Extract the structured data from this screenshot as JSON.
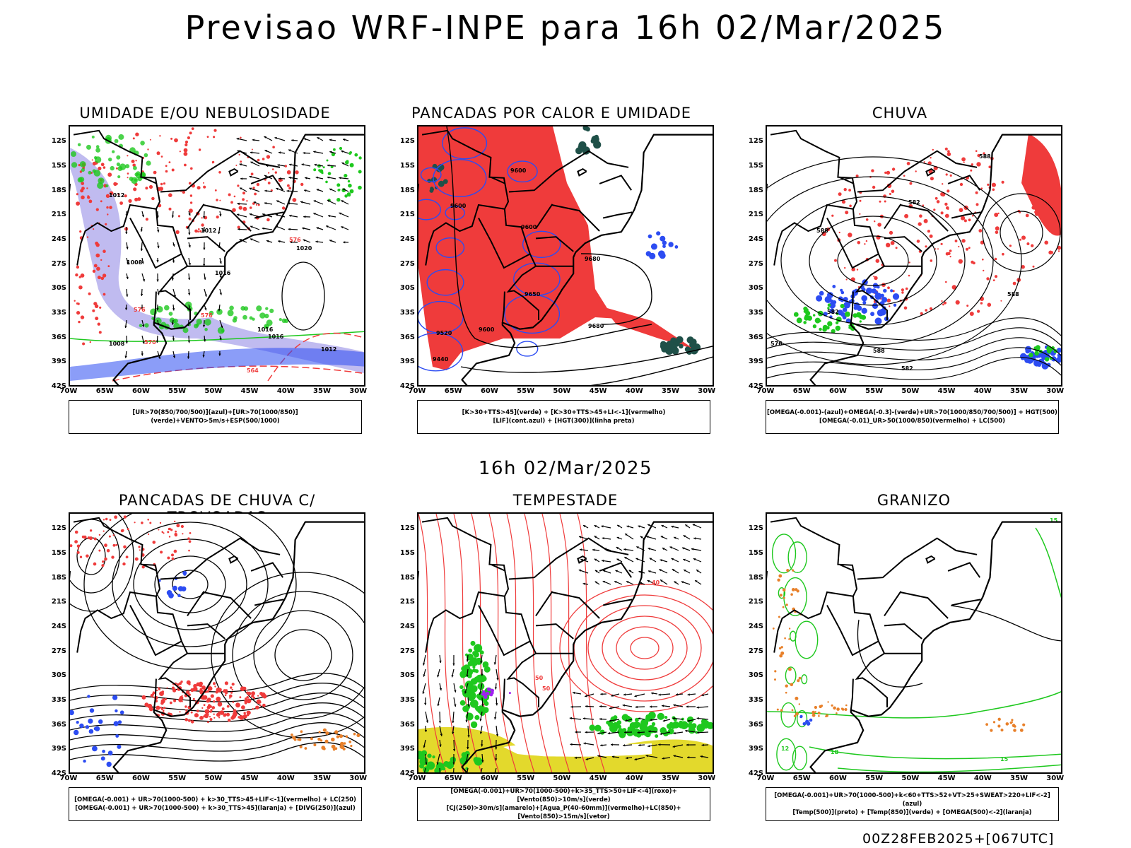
{
  "title": "Previsao WRF-INPE  para 16h 02/Mar/2025",
  "mid_title": "16h 02/Mar/2025",
  "footer": "00Z28FEB2025+[067UTC]",
  "axes": {
    "lat_ticks": [
      "12S",
      "15S",
      "18S",
      "21S",
      "24S",
      "27S",
      "30S",
      "33S",
      "36S",
      "39S",
      "42S"
    ],
    "lon_ticks": [
      "70W",
      "65W",
      "60W",
      "55W",
      "50W",
      "45W",
      "40W",
      "35W",
      "30W"
    ]
  },
  "colors": {
    "red": "#ef3b3b",
    "green": "#1ec81e",
    "blue": "#2c4cf2",
    "lavender": "#b9b4ee",
    "darkgreen": "#1f5048",
    "yellow": "#e3d92c",
    "orange": "#e8802a",
    "purple": "#a020f0"
  },
  "panels": [
    {
      "title": "UMIDADE E/OU NEBULOSIDADE",
      "legend": [
        "[UR>70(850/700/500)](azul)+[UR>70(1000/850)](verde)+VENTO>5m/s+ESP(500/1000)"
      ],
      "isobar_labels": [
        "1008",
        "1012",
        "1012",
        "1016",
        "1020",
        "1016",
        "1016",
        "1012",
        "1008"
      ],
      "thickness_labels": [
        "576",
        "576",
        "576",
        "570",
        "564"
      ]
    },
    {
      "title": "PANCADAS POR CALOR E UMIDADE",
      "legend": [
        "[K>30+TTS>45](verde) + [K>30+TTS>45+LI<-1](vermelho)",
        "[LIF](cont.azul) + [HGT(300)](linha preta)"
      ],
      "isobar_labels": [
        "9600",
        "9600",
        "9600",
        "9680",
        "9680",
        "9600",
        "9520",
        "9440",
        "9650"
      ]
    },
    {
      "title": "CHUVA",
      "legend": [
        "[OMEGA(-0.001)-(azul)+OMEGA(-0.3)-(verde)+UR>70(1000/850/700/500)] + HGT(500)",
        "[OMEGA(-0.01)_UR>50(1000/850)(vermelho) + LC(500)"
      ],
      "isobar_labels": [
        "588",
        "588",
        "582",
        "582",
        "588",
        "576",
        "582",
        "588"
      ]
    },
    {
      "title": "PANCADAS DE CHUVA C/ TROVOADAS",
      "legend": [
        "[OMEGA(-0.001) + UR>70(1000-500) + k>30_TTS>45+LIF<-1](vermelho) + LC(250)",
        "[OMEGA(-0.001) + UR>70(1000-500) + k>30_TTS>45](laranja) + [DIVG(250)](azul)"
      ]
    },
    {
      "title": "TEMPESTADE",
      "legend": [
        "[OMEGA(-0.001)+UR>70(1000-500)+k>35_TTS>50+LIF<-4](roxo)+[Vento(850)>10m/s](verde)",
        "[CJ(250)>30m/s](amarelo)+[Agua_P(40-60mm)](vermelho)+LC(850)+[Vento(850)>15m/s](vetor)"
      ],
      "isobar_labels": [
        "40",
        "50",
        "50"
      ]
    },
    {
      "title": "GRANIZO",
      "legend": [
        "[OMEGA(-0.001)+UR>70(1000-500)+k<60+TTS>52+VT>25+SWEAT>220+LIF<-2](azul)",
        "[Temp(500)](preto) + [Temp(850)](verde) + [OMEGA(500)<-2](laranja)"
      ],
      "isobar_labels": [
        "12",
        "15",
        "15",
        "18"
      ]
    }
  ]
}
